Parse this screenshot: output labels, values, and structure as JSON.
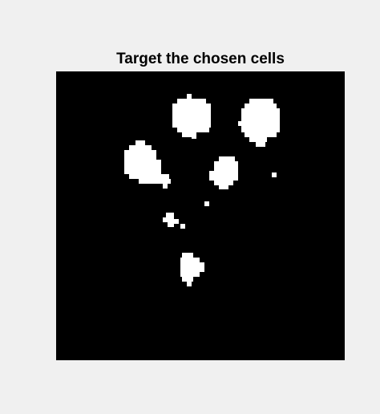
{
  "figure": {
    "title": "Target the chosen cells"
  },
  "image": {
    "description_type": "binary segmentation mask",
    "background_color": "#000000",
    "foreground_color": "#ffffff"
  }
}
